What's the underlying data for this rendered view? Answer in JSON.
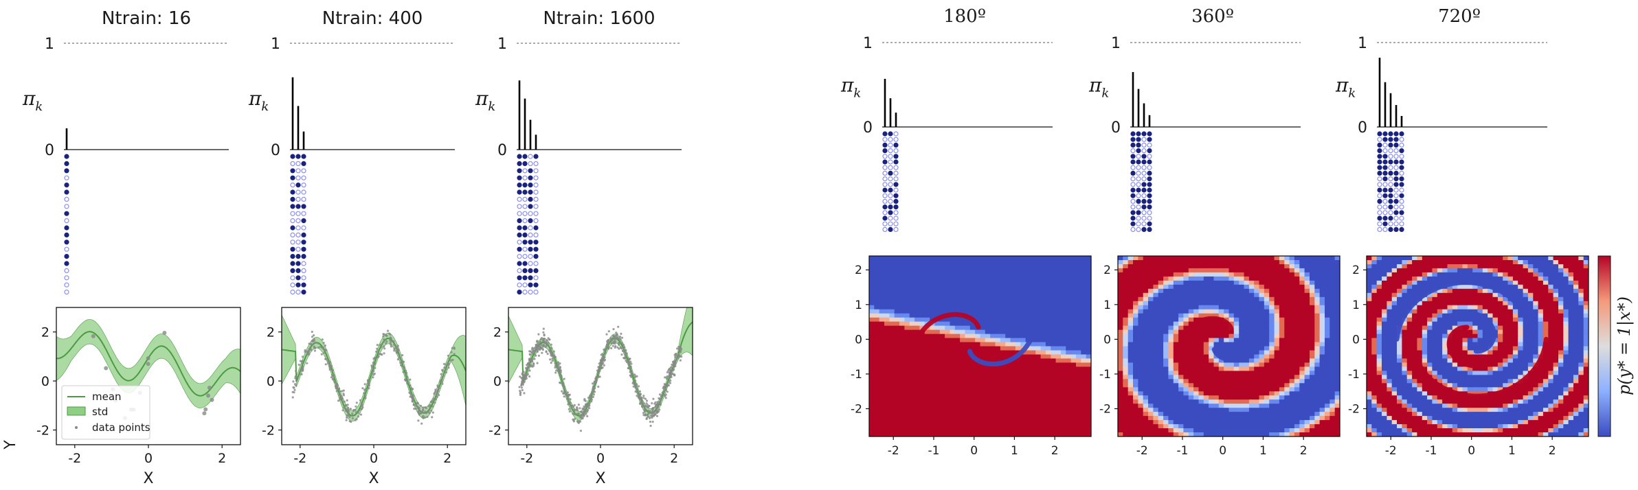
{
  "chart_data": [
    {
      "type": "bar",
      "title": "Ntrain: 16",
      "ylabel": "π_k",
      "ylim": [
        0,
        1
      ],
      "yticks": [
        "1",
        "0"
      ],
      "values": [
        0.2
      ],
      "mask_rows": 20,
      "mask_cols": 1,
      "mask_filled_prob": 0.35
    },
    {
      "type": "bar",
      "title": "Ntrain: 400",
      "ylabel": "π_k",
      "ylim": [
        0,
        1
      ],
      "yticks": [
        "1",
        "0"
      ],
      "values": [
        0.68,
        0.41,
        0.17
      ],
      "mask_rows": 20,
      "mask_cols": 3,
      "mask_filled_prob": 0.5
    },
    {
      "type": "bar",
      "title": "Ntrain: 1600",
      "ylabel": "π_k",
      "ylim": [
        0,
        1
      ],
      "yticks": [
        "1",
        "0"
      ],
      "values": [
        0.65,
        0.48,
        0.28,
        0.14
      ],
      "mask_rows": 20,
      "mask_cols": 4,
      "mask_filled_prob": 0.55
    },
    {
      "type": "line",
      "xlabel": "X",
      "ylabel": "Y",
      "xlim": [
        -2.5,
        2.5
      ],
      "ylim": [
        -2.6,
        3.0
      ],
      "xticks": [
        "-2",
        "0",
        "2"
      ],
      "yticks": [
        "2",
        "0",
        "-2"
      ],
      "legend": [
        "mean",
        "std",
        "data points"
      ],
      "legend_position": "lower-left",
      "n_points": 16,
      "std_width": 0.5
    },
    {
      "type": "line",
      "xlabel": "X",
      "ylim": [
        -2.6,
        3.0
      ],
      "xlim": [
        -2.5,
        2.5
      ],
      "xticks": [
        "-2",
        "0",
        "2"
      ],
      "yticks": [
        "2",
        "0",
        "-2"
      ],
      "n_points": 400,
      "std_width": 0.22
    },
    {
      "type": "line",
      "xlabel": "X",
      "ylim": [
        -2.6,
        3.0
      ],
      "xlim": [
        -2.5,
        2.5
      ],
      "xticks": [
        "-2",
        "0",
        "2"
      ],
      "yticks": [
        "2",
        "0",
        "-2"
      ],
      "n_points": 1600,
      "std_width": 0.18
    },
    {
      "type": "bar",
      "title": "180º",
      "ylabel": "π_k",
      "ylim": [
        0,
        1
      ],
      "yticks": [
        "1",
        "0"
      ],
      "values": [
        0.57,
        0.34,
        0.17
      ],
      "mask_rows": 18,
      "mask_cols": 3,
      "mask_filled_prob": 0.45
    },
    {
      "type": "bar",
      "title": "360º",
      "ylabel": "π_k",
      "ylim": [
        0,
        1
      ],
      "yticks": [
        "1",
        "0"
      ],
      "values": [
        0.65,
        0.45,
        0.28,
        0.14
      ],
      "mask_rows": 18,
      "mask_cols": 4,
      "mask_filled_prob": 0.5
    },
    {
      "type": "bar",
      "title": "720º",
      "ylabel": "π_k",
      "ylim": [
        0,
        1
      ],
      "yticks": [
        "1",
        "0"
      ],
      "values": [
        0.82,
        0.53,
        0.4,
        0.26,
        0.13
      ],
      "mask_rows": 18,
      "mask_cols": 5,
      "mask_filled_prob": 0.5
    },
    {
      "type": "heatmap",
      "xlim": [
        -2.6,
        2.9
      ],
      "ylim": [
        -2.8,
        2.4
      ],
      "xticks": [
        "-2",
        "-1",
        "0",
        "1",
        "2"
      ],
      "yticks": [
        "2",
        "1",
        "0",
        "-1",
        "-2"
      ],
      "spiral_turns_degrees": 180
    },
    {
      "type": "heatmap",
      "xlim": [
        -2.6,
        2.9
      ],
      "ylim": [
        -2.8,
        2.4
      ],
      "xticks": [
        "-2",
        "-1",
        "0",
        "1",
        "2"
      ],
      "yticks": [
        "2",
        "1",
        "0",
        "-1",
        "-2"
      ],
      "spiral_turns_degrees": 360
    },
    {
      "type": "heatmap",
      "xlim": [
        -2.6,
        2.9
      ],
      "ylim": [
        -2.8,
        2.4
      ],
      "xticks": [
        "-2",
        "-1",
        "0",
        "1",
        "2"
      ],
      "yticks": [
        "2",
        "1",
        "0",
        "-1",
        "-2"
      ],
      "spiral_turns_degrees": 720
    }
  ],
  "colorbar": {
    "label": "p(y* = 1|x*)",
    "low_color": "#3b4cc0",
    "high_color": "#b40426"
  },
  "colors": {
    "mean": "#4c9a44",
    "std_fill": "#8fcf84",
    "points": "#888888",
    "mask_filled": "#1a237e",
    "mask_empty": "#8a8ff0"
  }
}
